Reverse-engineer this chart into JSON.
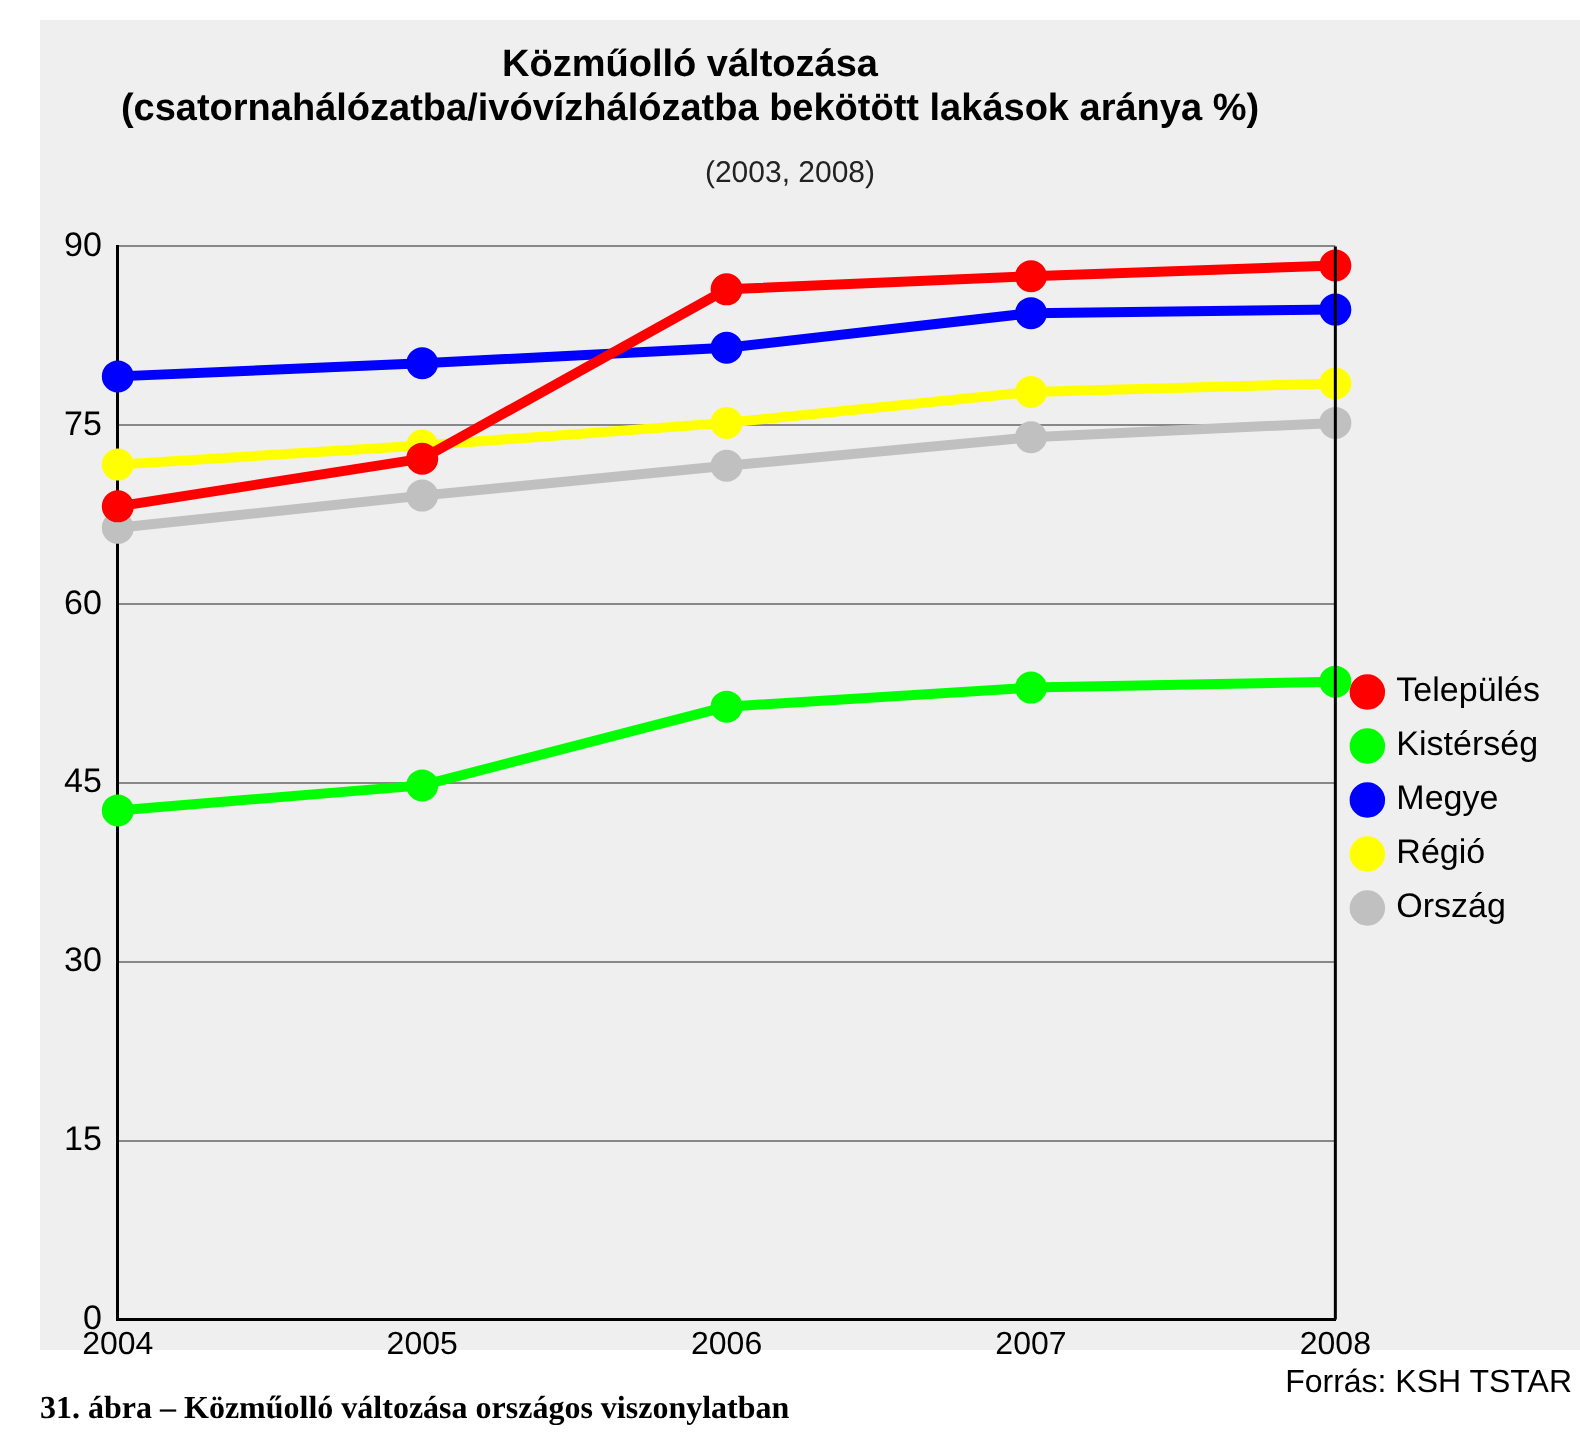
{
  "chart_data": {
    "type": "line",
    "title": "Közműolló változása",
    "subtitle": "(csatornahálózatba/ivóvízhálózatba bekötött lakások aránya %)",
    "annotations": [
      "(2003, 2008)",
      "Forrás: KSH TSTAR",
      "31. ábra – Közműolló változása országos viszonylatban"
    ],
    "x": [
      2004,
      2005,
      2006,
      2007,
      2008
    ],
    "xlim": [
      2004,
      2008
    ],
    "xticks": [
      2004,
      2005,
      2006,
      2007,
      2008
    ],
    "ylim": [
      0,
      90
    ],
    "yticks": [
      0,
      15,
      30,
      45,
      60,
      75,
      90
    ],
    "series": [
      {
        "name": "Település",
        "color": "#ff0000",
        "values": [
          68.2,
          72.2,
          86.4,
          87.5,
          88.4
        ]
      },
      {
        "name": "Kistérség",
        "color": "#00ff00",
        "values": [
          42.7,
          44.8,
          51.4,
          53.0,
          53.5
        ]
      },
      {
        "name": "Megye",
        "color": "#0000ff",
        "values": [
          79.1,
          80.2,
          81.5,
          84.4,
          84.7
        ]
      },
      {
        "name": "Régió",
        "color": "#ffff00",
        "values": [
          71.7,
          73.3,
          75.2,
          77.8,
          78.5
        ]
      },
      {
        "name": "Ország",
        "color": "#c0c0c0",
        "values": [
          66.4,
          69.1,
          71.6,
          74.0,
          75.2
        ]
      }
    ],
    "grid": "y",
    "legend": "right",
    "marker": "circle",
    "line_style": "solid"
  }
}
